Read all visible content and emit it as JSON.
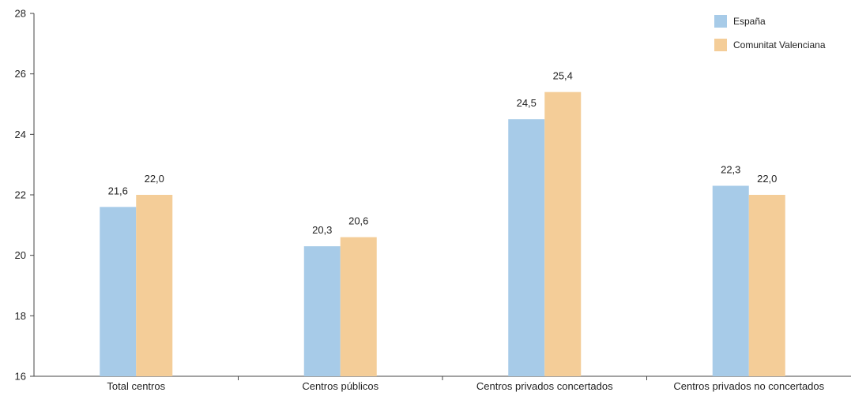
{
  "chart_data": {
    "type": "bar",
    "categories": [
      "Total centros",
      "Centros públicos",
      "Centros privados concertados",
      "Centros privados no concertados"
    ],
    "series": [
      {
        "name": "España",
        "values": [
          21.6,
          20.3,
          24.5,
          22.3
        ],
        "labels": [
          "21,6",
          "20,3",
          "24,5",
          "22,3"
        ],
        "color": "#a7cbe8"
      },
      {
        "name": "Comunitat Valenciana",
        "values": [
          22.0,
          20.6,
          25.4,
          22.0
        ],
        "labels": [
          "22,0",
          "20,6",
          "25,4",
          "22,0"
        ],
        "color": "#f4cd98"
      }
    ],
    "ylim": [
      16,
      28
    ],
    "yticks": [
      "16",
      "18",
      "20",
      "22",
      "24",
      "26",
      "28"
    ],
    "legend_position": "top-right",
    "grid": false
  }
}
